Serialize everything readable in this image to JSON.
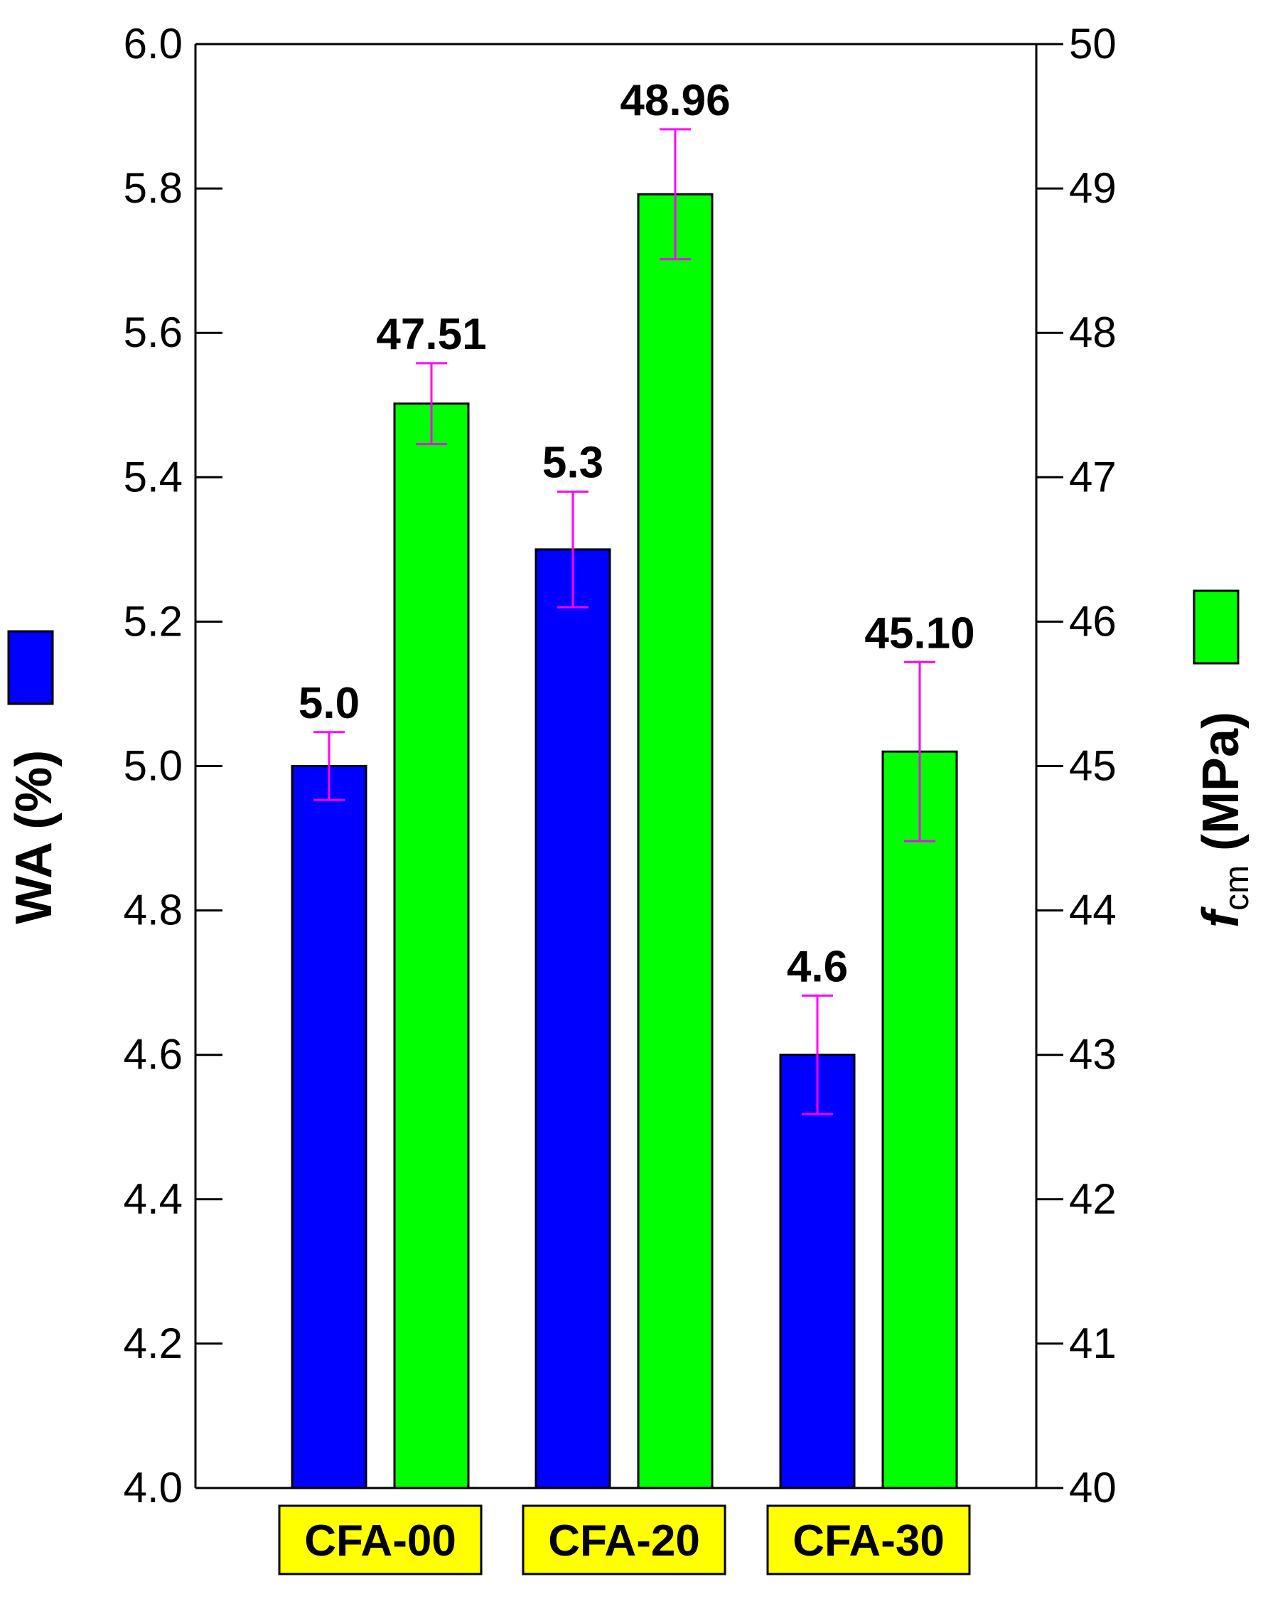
{
  "chart_data": {
    "type": "bar",
    "categories": [
      "CFA-00",
      "CFA-20",
      "CFA-30"
    ],
    "y_left": {
      "label": "WA (%)",
      "range": [
        4.0,
        6.0
      ],
      "ticks": [
        "4.0",
        "4.2",
        "4.4",
        "4.6",
        "4.8",
        "5.0",
        "5.2",
        "5.4",
        "5.6",
        "5.8",
        "6.0"
      ]
    },
    "y_right": {
      "label_main": "f",
      "label_sub": "cm",
      "label_rest": " (MPa)",
      "range": [
        40,
        50
      ],
      "ticks": [
        "40",
        "41",
        "42",
        "43",
        "44",
        "45",
        "46",
        "47",
        "48",
        "49",
        "50"
      ]
    },
    "series": [
      {
        "key": "WA",
        "axis": "left",
        "color": "#0000ff",
        "values": [
          5.0,
          5.3,
          4.6
        ],
        "errors": [
          0.047,
          0.08,
          0.082
        ],
        "labels": [
          "5.0",
          "5.3",
          "4.6"
        ]
      },
      {
        "key": "fcm",
        "axis": "right",
        "color": "#00ff00",
        "values": [
          47.51,
          48.96,
          45.1
        ],
        "errors": [
          0.28,
          0.45,
          0.62
        ],
        "labels": [
          "47.51",
          "48.96",
          "45.10"
        ]
      }
    ],
    "colors": {
      "category_box": "#ffff00",
      "error_bar": "#ff00ff"
    },
    "grid": false
  }
}
